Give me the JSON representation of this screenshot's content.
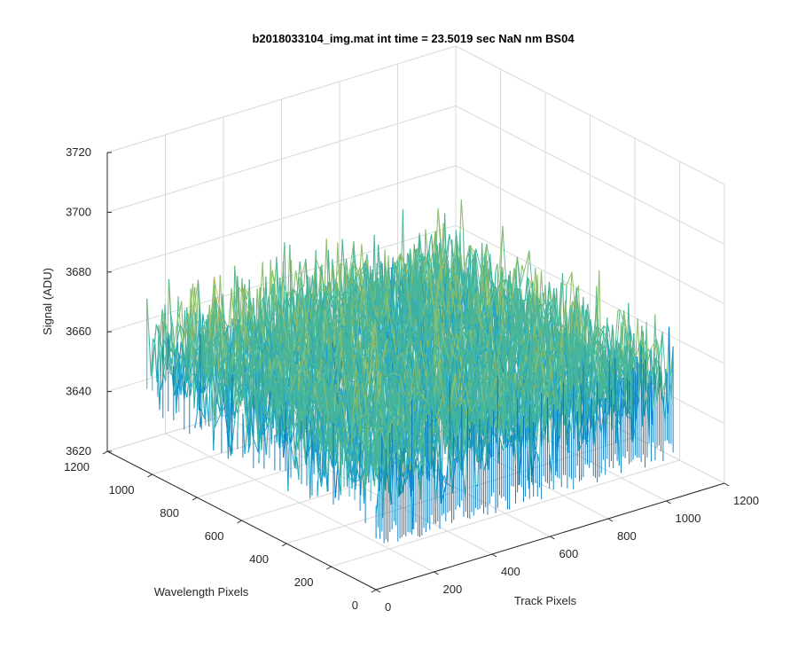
{
  "chart_data": {
    "type": "surface",
    "title": "b2018033104_img.mat int time = 23.5019 sec   NaN nm BS04",
    "xlabel": "Track Pixels",
    "ylabel": "Wavelength Pixels",
    "zlabel": "Signal (ADU)",
    "xlim": [
      0,
      1200
    ],
    "ylim": [
      0,
      1200
    ],
    "zlim": [
      3620,
      3720
    ],
    "xticks": [
      0,
      200,
      400,
      600,
      800,
      1000,
      1200
    ],
    "yticks": [
      0,
      200,
      400,
      600,
      800,
      1000,
      1200
    ],
    "zticks": [
      3620,
      3640,
      3660,
      3680,
      3700,
      3720
    ],
    "x_data_range": [
      1,
      1024
    ],
    "y_data_range": [
      1,
      1024
    ],
    "typical_level": 3660,
    "noise_range": [
      3633,
      3703
    ],
    "grid": true,
    "box": false,
    "colormap": [
      "#0072bd",
      "#1ea1c8",
      "#47b59a",
      "#8fbf6e",
      "#d6b43c",
      "#edb120"
    ]
  }
}
